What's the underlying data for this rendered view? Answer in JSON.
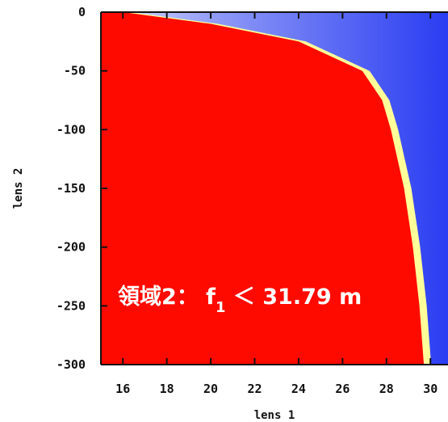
{
  "chart_data": {
    "type": "heatmap",
    "title": "",
    "xlabel": "lens 1",
    "ylabel": "lens 2",
    "xlim": [
      15,
      30.8
    ],
    "ylim": [
      -300,
      0
    ],
    "x_ticks": [
      16,
      18,
      20,
      22,
      24,
      26,
      28,
      30
    ],
    "y_ticks": [
      0,
      -50,
      -100,
      -150,
      -200,
      -250,
      -300
    ],
    "x_tick_labels": [
      "16",
      "18",
      "20",
      "22",
      "24",
      "26",
      "28",
      "30"
    ],
    "y_tick_labels": [
      "0",
      "-50",
      "-100",
      "-150",
      "-200",
      "-250",
      "-300"
    ],
    "boundary": {
      "description_points_lens2": [
        0,
        -10,
        -25,
        -50,
        -75,
        -100,
        -150,
        -200,
        -250,
        -300
      ],
      "lens1": [
        16.0,
        20.0,
        24.0,
        26.9,
        27.8,
        28.2,
        28.8,
        29.2,
        29.5,
        29.7
      ]
    },
    "colors": {
      "region_inside": "#ff0a00",
      "boundary_band": "#ffff9a",
      "region_outside": "#2a3df2"
    },
    "grid": false,
    "legend": "none",
    "annotation": {
      "prefix": "領域2： f",
      "subscript": "1",
      "suffix": " ＜ 31.79 m"
    }
  }
}
